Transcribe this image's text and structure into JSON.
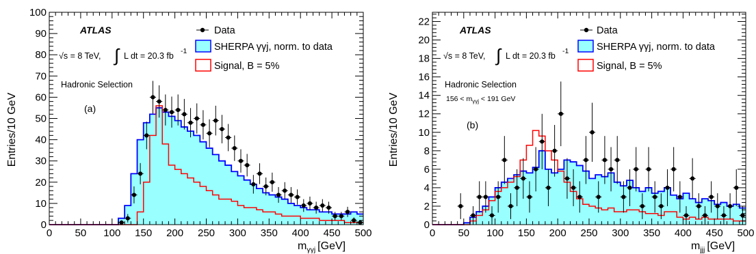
{
  "colors": {
    "sherpa_fill": "#99ffff",
    "sherpa_line": "#0000ff",
    "signal": "#ff0000",
    "data": "#000000"
  },
  "chart_data": [
    {
      "type": "histogram",
      "panel": "(a)",
      "atlas": "ATLAS",
      "energy": "√s =  8 TeV,",
      "lumi": "L dt = 20.3 fb",
      "lumi_sup": "-1",
      "selection": "Hadronic Selection",
      "legend": {
        "data": "Data",
        "sherpa": "SHERPA γγj, norm. to data",
        "signal": "Signal, B = 5%"
      },
      "xlabel": "m",
      "xlabel_sub": "γγj",
      "xlabel_unit": "[GeV]",
      "ylabel": "Entries/10 GeV",
      "xlim": [
        0,
        500
      ],
      "ylim": [
        0,
        100
      ],
      "xticks": [
        0,
        50,
        100,
        150,
        200,
        250,
        300,
        350,
        400,
        450,
        500
      ],
      "yticks": [
        0,
        10,
        20,
        30,
        40,
        50,
        60,
        70,
        80,
        90,
        100
      ],
      "bin_width": 10,
      "sherpa_bins": [
        0,
        0,
        0,
        0,
        0,
        0,
        0,
        0,
        0,
        0,
        0,
        3,
        9,
        24,
        40,
        48,
        52,
        55,
        53,
        51,
        49,
        46,
        44,
        42,
        39,
        36,
        33,
        30,
        28,
        25,
        23,
        21,
        19,
        17,
        15,
        14,
        13,
        12,
        10,
        9,
        8,
        7,
        7,
        6,
        6,
        5,
        5,
        5,
        6,
        5
      ],
      "signal_bins": [
        0,
        0,
        0,
        0,
        0,
        0,
        0,
        0,
        0,
        0,
        0,
        0,
        0,
        0,
        6,
        20,
        42,
        56,
        38,
        28,
        26,
        24,
        22,
        20,
        18,
        16,
        14,
        12,
        12,
        11,
        9,
        8,
        8,
        7,
        6,
        6,
        5,
        4,
        4,
        4,
        3,
        3,
        3,
        2,
        2,
        2,
        2,
        1,
        1,
        1
      ],
      "data_points": [
        {
          "x": 115,
          "y": 1,
          "err": 1
        },
        {
          "x": 125,
          "y": 3,
          "err": 2
        },
        {
          "x": 135,
          "y": 14,
          "err": 4
        },
        {
          "x": 145,
          "y": 24,
          "err": 5
        },
        {
          "x": 155,
          "y": 42,
          "err": 6.5
        },
        {
          "x": 165,
          "y": 60,
          "err": 7.7
        },
        {
          "x": 175,
          "y": 58,
          "err": 7.6
        },
        {
          "x": 185,
          "y": 54,
          "err": 7.3
        },
        {
          "x": 195,
          "y": 53,
          "err": 7.3
        },
        {
          "x": 205,
          "y": 54,
          "err": 7.3
        },
        {
          "x": 215,
          "y": 52,
          "err": 7.2
        },
        {
          "x": 225,
          "y": 48,
          "err": 6.9
        },
        {
          "x": 235,
          "y": 50,
          "err": 7.1
        },
        {
          "x": 245,
          "y": 47,
          "err": 6.9
        },
        {
          "x": 255,
          "y": 43,
          "err": 6.6
        },
        {
          "x": 265,
          "y": 49,
          "err": 7
        },
        {
          "x": 275,
          "y": 45,
          "err": 6.7
        },
        {
          "x": 285,
          "y": 41,
          "err": 6.4
        },
        {
          "x": 295,
          "y": 36,
          "err": 6
        },
        {
          "x": 305,
          "y": 30,
          "err": 5.5
        },
        {
          "x": 315,
          "y": 28,
          "err": 5.3
        },
        {
          "x": 325,
          "y": 19,
          "err": 4.4
        },
        {
          "x": 335,
          "y": 24,
          "err": 4.9
        },
        {
          "x": 345,
          "y": 18,
          "err": 4.2
        },
        {
          "x": 355,
          "y": 20,
          "err": 4.5
        },
        {
          "x": 365,
          "y": 14,
          "err": 3.7
        },
        {
          "x": 375,
          "y": 16,
          "err": 4
        },
        {
          "x": 385,
          "y": 14,
          "err": 3.7
        },
        {
          "x": 395,
          "y": 13,
          "err": 3.6
        },
        {
          "x": 405,
          "y": 9,
          "err": 3
        },
        {
          "x": 415,
          "y": 10,
          "err": 3.2
        },
        {
          "x": 425,
          "y": 8,
          "err": 2.8
        },
        {
          "x": 435,
          "y": 9,
          "err": 3
        },
        {
          "x": 445,
          "y": 8,
          "err": 2.8
        },
        {
          "x": 455,
          "y": 4,
          "err": 2
        },
        {
          "x": 465,
          "y": 4,
          "err": 2
        },
        {
          "x": 475,
          "y": 6,
          "err": 2.4
        },
        {
          "x": 485,
          "y": 2,
          "err": 1.4
        },
        {
          "x": 495,
          "y": 1,
          "err": 1
        }
      ]
    },
    {
      "type": "histogram",
      "panel": "(b)",
      "atlas": "ATLAS",
      "energy": "√s = 8 TeV,",
      "lumi": "L dt = 20.3 fb",
      "lumi_sup": "-1",
      "selection": "Hadronic Selection",
      "selection2": "156 < m",
      "selection2_sub": "γγj",
      "selection2_rest": " < 191 GeV",
      "legend": {
        "data": "Data",
        "sherpa": "SHERPA γγj, norm. to data",
        "signal": "Signal, B = 5%"
      },
      "xlabel": "m",
      "xlabel_sub": "jjj",
      "xlabel_unit": "[GeV]",
      "ylabel": "Entries/10 GeV",
      "xlim": [
        0,
        500
      ],
      "ylim": [
        0,
        23
      ],
      "xticks": [
        0,
        50,
        100,
        150,
        200,
        250,
        300,
        350,
        400,
        450,
        500
      ],
      "yticks": [
        0,
        2,
        4,
        6,
        8,
        10,
        12,
        14,
        16,
        18,
        20,
        22
      ],
      "bin_width": 10,
      "sherpa_bins": [
        0,
        0,
        0,
        0,
        0,
        0.2,
        0.8,
        1.4,
        2,
        3,
        4,
        4.6,
        5,
        5.4,
        5.8,
        5.6,
        6.2,
        8,
        6,
        5.6,
        6,
        7,
        6.8,
        6.4,
        5.8,
        5,
        5.4,
        5.2,
        5.6,
        4.6,
        4.2,
        4.8,
        4,
        3.6,
        4,
        3.4,
        3.6,
        4,
        3.2,
        2.8,
        3.4,
        2.8,
        2.4,
        2.8,
        2.6,
        2.2,
        2.4,
        2,
        2.2,
        1.8
      ],
      "signal_bins": [
        0,
        0,
        0,
        0,
        0,
        0,
        0.4,
        1,
        1.6,
        2.6,
        3.6,
        4,
        4.6,
        5.2,
        7,
        8.6,
        10.2,
        9.6,
        8,
        7,
        5.8,
        4.6,
        3.6,
        2.8,
        2.2,
        2,
        1.8,
        1.6,
        1.8,
        1.4,
        1.4,
        1.6,
        1.6,
        1.4,
        1.2,
        1.2,
        1,
        1.4,
        1.4,
        0.8,
        0.6,
        0.8,
        0.6,
        0.8,
        0.6,
        0.6,
        0.6,
        0.6,
        0.4,
        0.4
      ],
      "data_points": [
        {
          "x": 45,
          "y": 2,
          "err": 1.4
        },
        {
          "x": 65,
          "y": 1,
          "err": 1
        },
        {
          "x": 75,
          "y": 3,
          "err": 1.7
        },
        {
          "x": 85,
          "y": 3,
          "err": 1.7
        },
        {
          "x": 95,
          "y": 1,
          "err": 1
        },
        {
          "x": 105,
          "y": 3,
          "err": 1.7
        },
        {
          "x": 115,
          "y": 7,
          "err": 2.6
        },
        {
          "x": 125,
          "y": 2,
          "err": 1.4
        },
        {
          "x": 135,
          "y": 4,
          "err": 2
        },
        {
          "x": 145,
          "y": 5,
          "err": 2.2
        },
        {
          "x": 155,
          "y": 3,
          "err": 1.7
        },
        {
          "x": 165,
          "y": 6,
          "err": 2.4
        },
        {
          "x": 175,
          "y": 9,
          "err": 3
        },
        {
          "x": 185,
          "y": 4,
          "err": 2
        },
        {
          "x": 195,
          "y": 8,
          "err": 2.8
        },
        {
          "x": 205,
          "y": 12,
          "err": 3.5
        },
        {
          "x": 215,
          "y": 5,
          "err": 2.2
        },
        {
          "x": 225,
          "y": 4,
          "err": 2
        },
        {
          "x": 235,
          "y": 3,
          "err": 1.7
        },
        {
          "x": 245,
          "y": 7,
          "err": 2.6
        },
        {
          "x": 255,
          "y": 10,
          "err": 3.2
        },
        {
          "x": 265,
          "y": 3,
          "err": 1.7
        },
        {
          "x": 275,
          "y": 7,
          "err": 2.6
        },
        {
          "x": 285,
          "y": 6,
          "err": 2.4
        },
        {
          "x": 295,
          "y": 7,
          "err": 2.6
        },
        {
          "x": 305,
          "y": 3,
          "err": 1.7
        },
        {
          "x": 315,
          "y": 4,
          "err": 2
        },
        {
          "x": 325,
          "y": 6,
          "err": 2.4
        },
        {
          "x": 335,
          "y": 2,
          "err": 1.4
        },
        {
          "x": 345,
          "y": 6,
          "err": 2.4
        },
        {
          "x": 355,
          "y": 3,
          "err": 1.7
        },
        {
          "x": 365,
          "y": 2,
          "err": 1.4
        },
        {
          "x": 375,
          "y": 4,
          "err": 2
        },
        {
          "x": 385,
          "y": 6,
          "err": 2.4
        },
        {
          "x": 395,
          "y": 3,
          "err": 1.7
        },
        {
          "x": 405,
          "y": 1,
          "err": 1
        },
        {
          "x": 415,
          "y": 5,
          "err": 2.2
        },
        {
          "x": 425,
          "y": 2,
          "err": 1.4
        },
        {
          "x": 435,
          "y": 1,
          "err": 1
        },
        {
          "x": 445,
          "y": 3,
          "err": 1.7
        },
        {
          "x": 455,
          "y": 2,
          "err": 1.4
        },
        {
          "x": 465,
          "y": 1,
          "err": 1
        },
        {
          "x": 475,
          "y": 2,
          "err": 1.4
        },
        {
          "x": 485,
          "y": 4,
          "err": 2
        },
        {
          "x": 495,
          "y": 1,
          "err": 1
        }
      ]
    }
  ]
}
